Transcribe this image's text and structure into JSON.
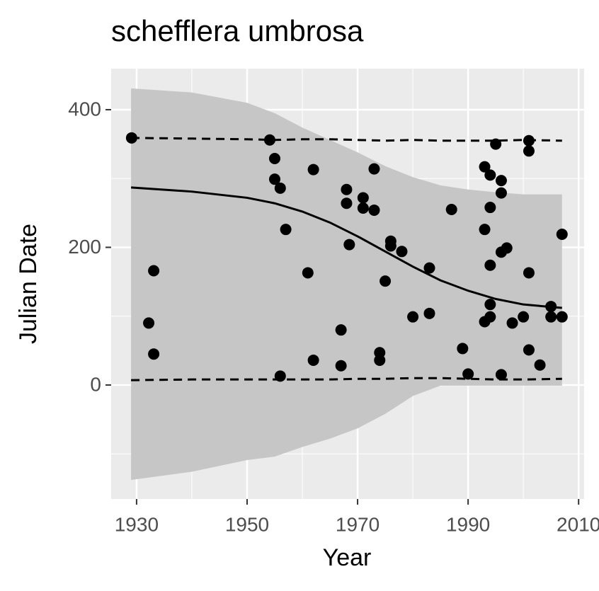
{
  "chart_data": {
    "type": "scatter",
    "title": "schefflera umbrosa",
    "x_label": "Year",
    "y_label": "Julian Date",
    "color": "#000000",
    "x": [
      1929.1,
      1932.2,
      1933.1,
      1933.1,
      1954.1,
      1955,
      1955,
      1956,
      1956,
      1957,
      1961,
      1962,
      1962,
      1967,
      1967,
      1968,
      1968,
      1971,
      1971,
      1968.5,
      1973,
      1973,
      1974,
      1974,
      1975,
      1976,
      1976,
      1978,
      1980,
      1983,
      1983,
      1987,
      1989,
      1990,
      1993,
      1993,
      1993,
      1994,
      1994,
      1994,
      1994,
      1994,
      1995,
      1996,
      1996,
      1996,
      1996,
      1997,
      1998,
      2000,
      2001,
      2001,
      2001,
      2001,
      2003,
      2005,
      2005,
      2007,
      2007
    ],
    "values": [
      359,
      90,
      166,
      45,
      356,
      329,
      299,
      286,
      13,
      226,
      163,
      313,
      36,
      80,
      28,
      284,
      264,
      272,
      257,
      204,
      314,
      254,
      47,
      36,
      151,
      209,
      202,
      194,
      99,
      170,
      104,
      255,
      53,
      16,
      317,
      226,
      92,
      305,
      258,
      174,
      117,
      99,
      350,
      297,
      279,
      193,
      15,
      199,
      90,
      99,
      355,
      340,
      163,
      51,
      29,
      114,
      99,
      219,
      99
    ],
    "fit": {
      "color": "#000000",
      "x": [
        1929,
        1940,
        1950,
        1955,
        1960,
        1965,
        1970,
        1975,
        1980,
        1985,
        1990,
        1995,
        2000,
        2007
      ],
      "values": [
        287,
        281,
        272,
        264,
        252,
        236,
        216,
        194,
        172,
        152,
        137,
        125,
        117,
        112
      ],
      "upper": [
        431,
        425,
        410,
        395,
        374,
        356,
        338,
        318,
        302,
        290,
        284,
        280,
        277,
        277
      ],
      "lower": [
        -138,
        -126,
        -109,
        -104,
        -90,
        -78,
        -63,
        -42,
        -16,
        -1,
        -1,
        -1,
        -1,
        -1
      ]
    },
    "quantiles": {
      "color": "#000000",
      "x": [
        1929,
        1940,
        1950,
        1955,
        1960,
        1965,
        1970,
        1975,
        1980,
        1985,
        1990,
        1995,
        2000,
        2007
      ],
      "upper": [
        359,
        358,
        357,
        356,
        357,
        357,
        356,
        355,
        356,
        355,
        355,
        355,
        356,
        355
      ],
      "lower": [
        7,
        8,
        8,
        8,
        8,
        8,
        9,
        9,
        10,
        10,
        9,
        8,
        8,
        9
      ]
    },
    "ribbon_color": "#c6c6c6",
    "xlim": [
      1925.4,
      2011.0
    ],
    "ylim": [
      -165.6,
      459.6
    ],
    "xticks": [
      1930,
      1950,
      1970,
      1990,
      2010
    ],
    "yticks": [
      0,
      200,
      400
    ],
    "x_minor_grid": [
      1940,
      1960,
      1980,
      2000
    ],
    "y_minor_grid": [
      -100,
      100,
      300
    ],
    "grid": true
  }
}
